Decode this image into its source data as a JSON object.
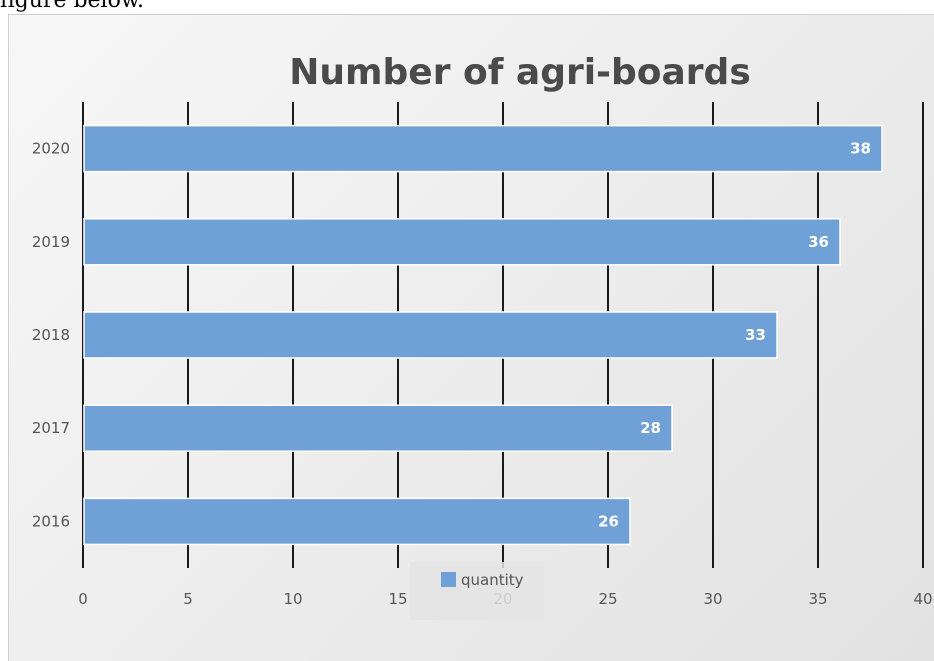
{
  "page": {
    "top_text": "figure below."
  },
  "chart_data": {
    "type": "bar",
    "orientation": "horizontal",
    "title": "Number of agri-boards",
    "xlabel": "",
    "ylabel": "",
    "categories": [
      "2016",
      "2017",
      "2018",
      "2019",
      "2020"
    ],
    "series": [
      {
        "name": "quantity",
        "values": [
          26,
          28,
          33,
          36,
          38
        ],
        "color": "#6fa1d6"
      }
    ],
    "xlim": [
      0,
      40
    ],
    "xticks": [
      0,
      5,
      10,
      15,
      20,
      25,
      30,
      35,
      40
    ],
    "grid": true,
    "gridline_color": "#1a1a1a",
    "legend_position": "bottom",
    "data_labels": true
  }
}
